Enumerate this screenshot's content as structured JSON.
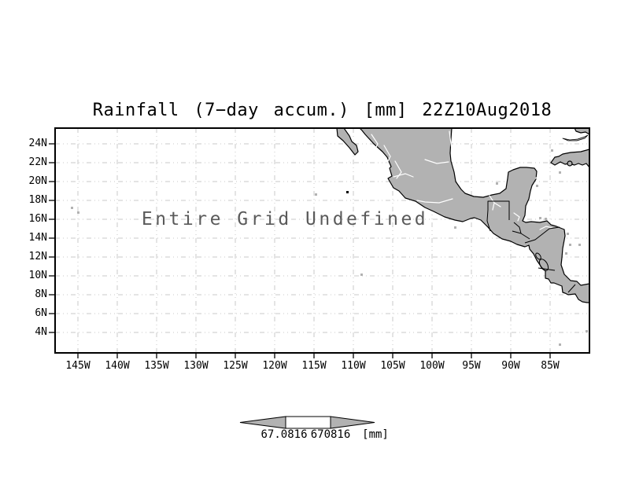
{
  "title": "Rainfall (7−day accum.) [mm] 22Z10Aug2018",
  "map": {
    "message": "Entire Grid Undefined"
  },
  "axes": {
    "lat_labels": [
      "24N",
      "22N",
      "20N",
      "18N",
      "16N",
      "14N",
      "12N",
      "10N",
      "8N",
      "6N",
      "4N"
    ],
    "lon_labels": [
      "145W",
      "140W",
      "135W",
      "130W",
      "125W",
      "120W",
      "115W",
      "110W",
      "105W",
      "100W",
      "95W",
      "90W",
      "85W"
    ]
  },
  "colorbar": {
    "low": "67.0816",
    "high": "670816",
    "unit": "[mm]"
  },
  "colors": {
    "background": "#ffffff",
    "text": "#000000",
    "frame": "#000000",
    "grid": "#c8c8c8",
    "land": "#b2b2b2",
    "coast": "#000000",
    "river": "#ffffff",
    "border": "#000000",
    "message": "#5a5a5a",
    "colorbar_fill": "#b2b2b2"
  },
  "chart_data": {
    "type": "map",
    "title": "Rainfall (7−day accum.) [mm] 22Z10Aug2018",
    "annotation": "Entire Grid Undefined",
    "x_tick_labels": [
      "145W",
      "140W",
      "135W",
      "130W",
      "125W",
      "120W",
      "115W",
      "110W",
      "105W",
      "100W",
      "95W",
      "90W",
      "85W"
    ],
    "y_tick_labels": [
      "24N",
      "22N",
      "20N",
      "18N",
      "16N",
      "14N",
      "12N",
      "10N",
      "8N",
      "6N",
      "4N"
    ],
    "x_range": "148W to 80W",
    "y_range": "2N to 25.7N",
    "grid": true,
    "legend_position": "bottom-center",
    "colorbar_tick_labels": [
      "67.0816",
      "670816"
    ],
    "colorbar_unit": "[mm]",
    "series": [],
    "note": "no data rendered; entire grid undefined"
  }
}
